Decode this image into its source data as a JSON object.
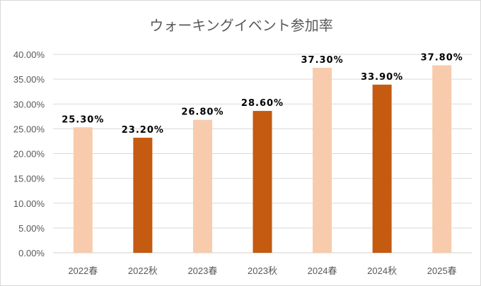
{
  "chart_data": {
    "type": "bar",
    "title": "ウォーキングイベント参加率",
    "categories": [
      "2022春",
      "2022秋",
      "2023春",
      "2023秋",
      "2024春",
      "2024秋",
      "2025春"
    ],
    "values": [
      25.3,
      23.2,
      26.8,
      28.6,
      37.3,
      33.9,
      37.8
    ],
    "data_labels": [
      "25.30%",
      "23.20%",
      "26.80%",
      "28.60%",
      "37.30%",
      "33.90%",
      "37.80%"
    ],
    "bar_colors": [
      "#F8CBAD",
      "#C55A11",
      "#F8CBAD",
      "#C55A11",
      "#F8CBAD",
      "#C55A11",
      "#F8CBAD"
    ],
    "y_ticks": [
      "0.00%",
      "5.00%",
      "10.00%",
      "15.00%",
      "20.00%",
      "25.00%",
      "30.00%",
      "35.00%",
      "40.00%"
    ],
    "ylim": [
      0,
      40
    ],
    "xlabel": "",
    "ylabel": "",
    "grid": true,
    "legend": "none"
  }
}
